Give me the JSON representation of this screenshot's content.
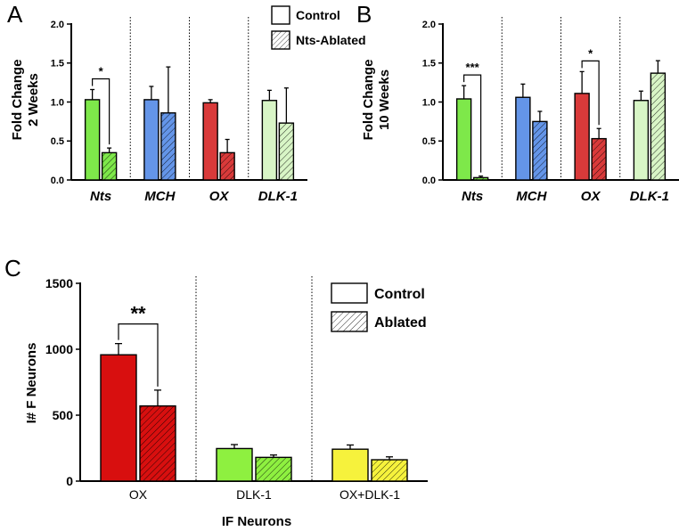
{
  "colors": {
    "Nts": "#7ee84a",
    "MCH": "#6495e8",
    "OX": "#d93a3a",
    "DLK-1": "#d8f5c6",
    "C_OX": "#d80f0f",
    "C_DLK-1": "#8ef040",
    "C_OX+DLK-1": "#f6f23c"
  },
  "chart_data": [
    {
      "panel": "A",
      "type": "bar",
      "ylabel_lines": [
        "Fold Change",
        "2 Weeks"
      ],
      "ylim": [
        0,
        2.0
      ],
      "yticks": [
        "0.0",
        "0.5",
        "1.0",
        "1.5",
        "2.0"
      ],
      "categories": [
        "Nts",
        "MCH",
        "OX",
        "DLK-1"
      ],
      "series": [
        {
          "name": "Control",
          "values": [
            1.03,
            1.03,
            0.99,
            1.02
          ],
          "errors": [
            0.13,
            0.17,
            0.04,
            0.13
          ]
        },
        {
          "name": "Nts-Ablated",
          "values": [
            0.35,
            0.86,
            0.35,
            0.73
          ],
          "errors": [
            0.06,
            0.59,
            0.17,
            0.45
          ]
        }
      ],
      "legend": [
        "Control",
        "Nts-Ablated"
      ],
      "significance": [
        {
          "category": "Nts",
          "label": "*"
        }
      ]
    },
    {
      "panel": "B",
      "type": "bar",
      "ylabel_lines": [
        "Fold Change",
        "10 Weeks"
      ],
      "ylim": [
        0,
        2.0
      ],
      "yticks": [
        "0.0",
        "0.5",
        "1.0",
        "1.5",
        "2.0"
      ],
      "categories": [
        "Nts",
        "MCH",
        "OX",
        "DLK-1"
      ],
      "series": [
        {
          "name": "Control",
          "values": [
            1.04,
            1.06,
            1.11,
            1.02
          ],
          "errors": [
            0.17,
            0.17,
            0.28,
            0.12
          ]
        },
        {
          "name": "Nts-Ablated",
          "values": [
            0.03,
            0.75,
            0.53,
            1.37
          ],
          "errors": [
            0.02,
            0.13,
            0.13,
            0.16
          ]
        }
      ],
      "significance": [
        {
          "category": "Nts",
          "label": "***"
        },
        {
          "category": "OX",
          "label": "*"
        }
      ]
    },
    {
      "panel": "C",
      "type": "bar",
      "ylabel": "I# F Neurons",
      "xlabel": "IF Neurons",
      "ylim": [
        0,
        1500
      ],
      "yticks": [
        "0",
        "500",
        "1000",
        "1500"
      ],
      "categories": [
        "OX",
        "DLK-1",
        "OX+DLK-1"
      ],
      "series": [
        {
          "name": "Control",
          "values": [
            958,
            247,
            242
          ],
          "errors": [
            85,
            30,
            32
          ]
        },
        {
          "name": "Ablated",
          "values": [
            570,
            180,
            162
          ],
          "errors": [
            120,
            18,
            22
          ]
        }
      ],
      "legend": [
        "Control",
        "Ablated"
      ],
      "significance": [
        {
          "category": "OX",
          "label": "**"
        }
      ]
    }
  ]
}
